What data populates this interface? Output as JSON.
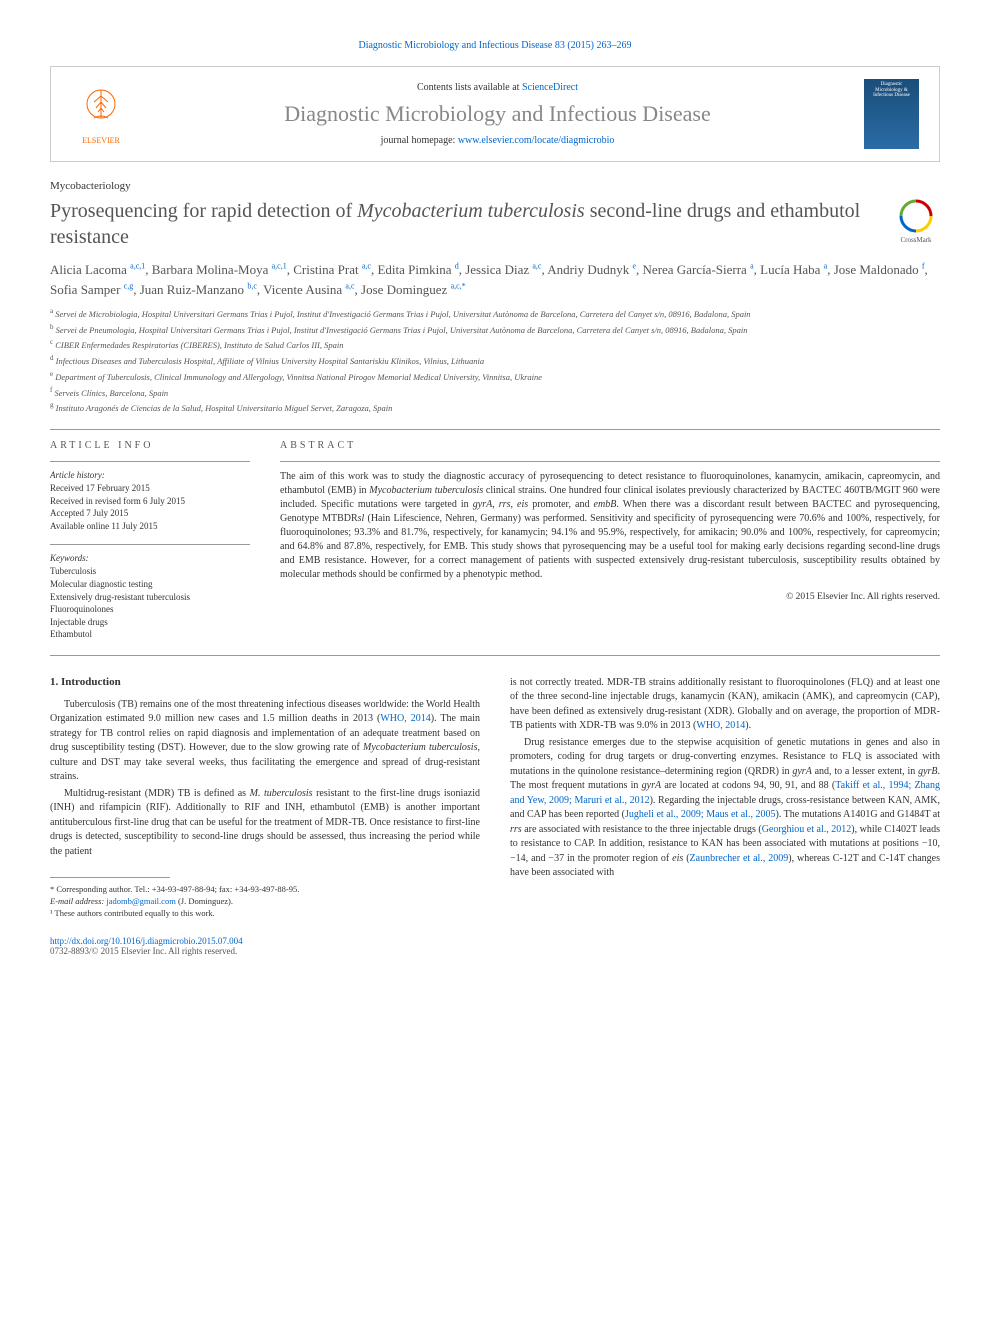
{
  "header": {
    "top_link": "Diagnostic Microbiology and Infectious Disease 83 (2015) 263–269",
    "contents_label": "Contents lists available at ",
    "contents_link": "ScienceDirect",
    "journal_name": "Diagnostic Microbiology and Infectious Disease",
    "homepage_label": "journal homepage: ",
    "homepage_url": "www.elsevier.com/locate/diagmicrobio",
    "elsevier_label": "ELSEVIER",
    "cover_title": "Diagnostic Microbiology & Infectious Disease"
  },
  "article": {
    "section": "Mycobacteriology",
    "title_pre": "Pyrosequencing for rapid detection of ",
    "title_ital": "Mycobacterium tuberculosis",
    "title_post": " second-line drugs and ethambutol resistance",
    "crossmark_label": "CrossMark",
    "authors_html": "Alicia Lacoma <sup>a,c,1</sup>, Barbara Molina-Moya <sup>a,c,1</sup>, Cristina Prat <sup>a,c</sup>, Edita Pimkina <sup>d</sup>, Jessica Diaz <sup>a,c</sup>, Andriy Dudnyk <sup>e</sup>, Nerea García-Sierra <sup>a</sup>, Lucía Haba <sup>a</sup>, Jose Maldonado <sup>f</sup>, Sofia Samper <sup>c,g</sup>, Juan Ruiz-Manzano <sup>b,c</sup>, Vicente Ausina <sup>a,c</sup>, Jose Dominguez <sup>a,c,*</sup>",
    "affiliations": [
      {
        "sup": "a",
        "text": "Servei de Microbiologia, Hospital Universitari Germans Trias i Pujol, Institut d'Investigació Germans Trias i Pujol, Universitat Autònoma de Barcelona, Carretera del Canyet s/n, 08916, Badalona, Spain"
      },
      {
        "sup": "b",
        "text": "Servei de Pneumologia, Hospital Universitari Germans Trias i Pujol, Institut d'Investigació Germans Trias i Pujol, Universitat Autònoma de Barcelona, Carretera del Canyet s/n, 08916, Badalona, Spain"
      },
      {
        "sup": "c",
        "text": "CIBER Enfermedades Respiratorias (CIBERES), Instituto de Salud Carlos III, Spain"
      },
      {
        "sup": "d",
        "text": "Infectious Diseases and Tuberculosis Hospital, Affiliate of Vilnius University Hospital Santariskiu Klinikos, Vilnius, Lithuania"
      },
      {
        "sup": "e",
        "text": "Department of Tuberculosis, Clinical Immunology and Allergology, Vinnitsa National Pirogov Memorial Medical University, Vinnitsa, Ukraine"
      },
      {
        "sup": "f",
        "text": "Serveis Clínics, Barcelona, Spain"
      },
      {
        "sup": "g",
        "text": "Instituto Aragonés de Ciencias de la Salud, Hospital Universitario Miguel Servet, Zaragoza, Spain"
      }
    ]
  },
  "info": {
    "heading": "ARTICLE INFO",
    "history_label": "Article history:",
    "history": [
      "Received 17 February 2015",
      "Received in revised form 6 July 2015",
      "Accepted 7 July 2015",
      "Available online 11 July 2015"
    ],
    "keywords_label": "Keywords:",
    "keywords": [
      "Tuberculosis",
      "Molecular diagnostic testing",
      "Extensively drug-resistant tuberculosis",
      "Fluoroquinolones",
      "Injectable drugs",
      "Ethambutol"
    ]
  },
  "abstract": {
    "heading": "ABSTRACT",
    "text": "The aim of this work was to study the diagnostic accuracy of pyrosequencing to detect resistance to fluoroquinolones, kanamycin, amikacin, capreomycin, and ethambutol (EMB) in <em>Mycobacterium tuberculosis</em> clinical strains. One hundred four clinical isolates previously characterized by BACTEC 460TB/MGIT 960 were included. Specific mutations were targeted in <em>gyrA</em>, <em>rrs</em>, <em>eis</em> promoter, and <em>embB</em>. When there was a discordant result between BACTEC and pyrosequencing, Genotype MTBDR<em>sl</em> (Hain Lifescience, Nehren, Germany) was performed. Sensitivity and specificity of pyrosequencing were 70.6% and 100%, respectively, for fluoroquinolones; 93.3% and 81.7%, respectively, for kanamycin; 94.1% and 95.9%, respectively, for amikacin; 90.0% and 100%, respectively, for capreomycin; and 64.8% and 87.8%, respectively, for EMB. This study shows that pyrosequencing may be a useful tool for making early decisions regarding second-line drugs and EMB resistance. However, for a correct management of patients with suspected extensively drug-resistant tuberculosis, susceptibility results obtained by molecular methods should be confirmed by a phenotypic method.",
    "copyright": "© 2015 Elsevier Inc. All rights reserved."
  },
  "body": {
    "section1": "1. Introduction",
    "para1": "Tuberculosis (TB) remains one of the most threatening infectious diseases worldwide: the World Health Organization estimated 9.0 million new cases and 1.5 million deaths in 2013 (<span class='link-blue'>WHO, 2014</span>). The main strategy for TB control relies on rapid diagnosis and implementation of an adequate treatment based on drug susceptibility testing (DST). However, due to the slow growing rate of <em>Mycobacterium tuberculosis</em>, culture and DST may take several weeks, thus facilitating the emergence and spread of drug-resistant strains.",
    "para2": "Multidrug-resistant (MDR) TB is defined as <em>M. tuberculosis</em> resistant to the first-line drugs isoniazid (INH) and rifampicin (RIF). Additionally to RIF and INH, ethambutol (EMB) is another important antituberculous first-line drug that can be useful for the treatment of MDR-TB. Once resistance to first-line drugs is detected, susceptibility to second-line drugs should be assessed, thus increasing the period while the patient",
    "para3": "is not correctly treated. MDR-TB strains additionally resistant to fluoroquinolones (FLQ) and at least one of the three second-line injectable drugs, kanamycin (KAN), amikacin (AMK), and capreomycin (CAP), have been defined as extensively drug-resistant (XDR). Globally and on average, the proportion of MDR-TB patients with XDR-TB was 9.0% in 2013 (<span class='link-blue'>WHO, 2014</span>).",
    "para4": "Drug resistance emerges due to the stepwise acquisition of genetic mutations in genes and also in promoters, coding for drug targets or drug-converting enzymes. Resistance to FLQ is associated with mutations in the quinolone resistance–determining region (QRDR) in <em>gyrA</em> and, to a lesser extent, in <em>gyrB</em>. The most frequent mutations in <em>gyrA</em> are located at codons 94, 90, 91, and 88 (<span class='link-blue'>Takiff et al., 1994; Zhang and Yew, 2009; Maruri et al., 2012</span>). Regarding the injectable drugs, cross-resistance between KAN, AMK, and CAP has been reported (<span class='link-blue'>Jugheli et al., 2009; Maus et al., 2005</span>). The mutations A1401G and G1484T at <em>rrs</em> are associated with resistance to the three injectable drugs (<span class='link-blue'>Georghiou et al., 2012</span>), while C1402T leads to resistance to CAP. In addition, resistance to KAN has been associated with mutations at positions −10, −14, and −37 in the promoter region of <em>eis</em> (<span class='link-blue'>Zaunbrecher et al., 2009</span>), whereas C-12T and C-14T changes have been associated with"
  },
  "footnotes": {
    "corr": "* Corresponding author. Tel.: +34-93-497-88-94; fax: +34-93-497-88-95.",
    "email_label": "E-mail address: ",
    "email": "jadomb@gmail.com",
    "email_suffix": " (J. Dominguez).",
    "contrib": "¹ These authors contributed equally to this work.",
    "doi": "http://dx.doi.org/10.1016/j.diagmicrobio.2015.07.004",
    "issn": "0732-8893/© 2015 Elsevier Inc. All rights reserved."
  },
  "colors": {
    "link": "#0066cc",
    "accent": "#ff6600",
    "text_muted": "#555555",
    "cover_bg": "#1a4d7a"
  }
}
